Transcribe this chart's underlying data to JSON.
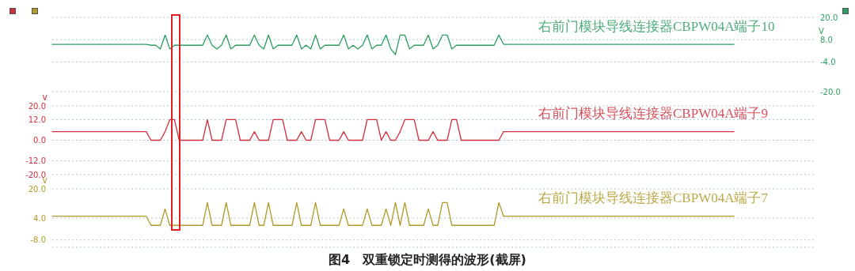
{
  "chart_data": [
    {
      "type": "line",
      "categories": [
        null,
        null,
        null,
        null,
        null,
        null,
        null,
        null,
        null,
        null,
        null,
        null,
        null,
        null,
        null,
        null,
        null,
        null,
        null,
        null,
        null,
        null,
        null,
        null,
        null,
        null,
        null,
        null,
        null,
        null,
        null,
        null,
        null,
        null,
        null,
        null,
        null,
        null,
        null,
        null,
        null,
        null,
        null,
        null,
        null,
        null,
        null,
        null,
        null,
        null,
        null,
        null,
        null,
        null,
        null,
        null,
        null,
        null,
        null,
        null,
        null,
        null,
        null,
        null,
        null,
        null,
        null,
        null,
        null,
        null,
        null,
        null,
        null,
        null,
        null,
        null,
        null,
        null,
        null,
        null,
        null,
        null,
        null,
        null,
        null,
        null,
        null,
        null,
        null,
        null,
        null,
        null,
        null,
        null,
        null,
        null,
        null,
        null,
        null,
        null,
        null,
        null,
        null,
        null,
        null,
        null,
        null,
        null,
        null,
        null,
        null,
        null,
        null,
        null,
        null,
        null,
        null,
        null,
        null,
        null,
        null,
        null,
        null,
        null,
        null,
        null,
        null,
        null,
        null,
        null,
        null,
        null,
        null,
        null,
        null,
        null,
        null,
        null,
        null,
        null,
        null,
        null,
        null,
        null,
        null,
        null,
        null,
        null,
        null,
        null,
        null,
        null,
        null,
        null,
        null,
        null,
        null,
        null,
        null,
        null,
        null,
        null,
        null
      ],
      "series": [
        {
          "name": "右前门模块导线连接器CBPW04A端子10",
          "color": "#2e9e62",
          "values": [
            5.5,
            5.5,
            5.5,
            5.5,
            5.5,
            5.5,
            5.5,
            5.5,
            5.5,
            5.5,
            5.5,
            5.5,
            5.5,
            5.5,
            5.5,
            5.5,
            5.5,
            5.5,
            5.5,
            5.5,
            5.5,
            5,
            5,
            3,
            10.5,
            3,
            5,
            5,
            5,
            5,
            5,
            5,
            5,
            10.5,
            5,
            3,
            5,
            10.5,
            3,
            5,
            5,
            5,
            5,
            10.5,
            5,
            3,
            10.5,
            3,
            5,
            5,
            5,
            5,
            10.5,
            3,
            5,
            3,
            10.5,
            3,
            5,
            5,
            5,
            5,
            10.5,
            3,
            5,
            3,
            5,
            10.5,
            3,
            5,
            5,
            10.5,
            3,
            0,
            10.5,
            10.5,
            3,
            5,
            5,
            5,
            10.5,
            3,
            5,
            10.5,
            10.5,
            3,
            5,
            5,
            5,
            5,
            5,
            5,
            5,
            5,
            5,
            10.5,
            5.5,
            5.5,
            5.5,
            5.5,
            5.5,
            5.5,
            5.5,
            5.5,
            5.5,
            5.5,
            5.5,
            5.5,
            5.5,
            5.5,
            5.5,
            5.5,
            5.5,
            5.5,
            5.5,
            5.5,
            5.5,
            5.5,
            5.5,
            5.5,
            5.5,
            5.5,
            5.5,
            5.5,
            5.5,
            5.5,
            5.5,
            5.5,
            5.5,
            5.5,
            5.5,
            5.5,
            5.5,
            5.5,
            5.5,
            5.5,
            5.5,
            5.5,
            5.5,
            5.5,
            5.5,
            5.5,
            5.5,
            5.5,
            5.5,
            5.5,
            null,
            null,
            null,
            null,
            null,
            null,
            null,
            null,
            null,
            null,
            null,
            null,
            null,
            null,
            null,
            null,
            null
          ]
        }
      ],
      "ylabel": "V",
      "ylim": [
        -20,
        20
      ],
      "yticks": [
        {
          "value": 20,
          "label": "20.0"
        },
        {
          "value": 8,
          "label": "8.0"
        },
        {
          "value": -4,
          "label": "-4.0"
        },
        {
          "value": -20,
          "label": "-20.0"
        }
      ],
      "grid": "y",
      "legend": false,
      "tick_labels": "y"
    },
    {
      "type": "line",
      "categories": [
        null,
        null,
        null,
        null,
        null,
        null,
        null,
        null,
        null,
        null,
        null,
        null,
        null,
        null,
        null,
        null,
        null,
        null,
        null,
        null,
        null,
        null,
        null,
        null,
        null,
        null,
        null,
        null,
        null,
        null,
        null,
        null,
        null,
        null,
        null,
        null,
        null,
        null,
        null,
        null,
        null,
        null,
        null,
        null,
        null,
        null,
        null,
        null,
        null,
        null,
        null,
        null,
        null,
        null,
        null,
        null,
        null,
        null,
        null,
        null,
        null,
        null,
        null,
        null,
        null,
        null,
        null,
        null,
        null,
        null,
        null,
        null,
        null,
        null,
        null,
        null,
        null,
        null,
        null,
        null,
        null,
        null,
        null,
        null,
        null,
        null,
        null,
        null,
        null,
        null,
        null,
        null,
        null,
        null,
        null,
        null,
        null,
        null,
        null,
        null,
        null,
        null,
        null,
        null,
        null,
        null,
        null,
        null,
        null,
        null,
        null,
        null,
        null,
        null,
        null,
        null,
        null,
        null,
        null,
        null,
        null,
        null,
        null,
        null,
        null,
        null,
        null,
        null,
        null,
        null,
        null,
        null,
        null,
        null,
        null,
        null,
        null,
        null,
        null,
        null,
        null,
        null,
        null,
        null,
        null,
        null,
        null,
        null,
        null,
        null,
        null,
        null,
        null,
        null,
        null,
        null,
        null,
        null,
        null,
        null,
        null,
        null,
        null
      ],
      "series": [
        {
          "name": "右前门模块导线连接器CBPW04A端子9",
          "color": "#d0303e",
          "values": [
            5,
            5,
            5,
            5,
            5,
            5,
            5,
            5,
            5,
            5,
            5,
            5,
            5,
            5,
            5,
            5,
            5,
            5,
            5,
            5,
            5,
            0,
            0,
            0,
            5,
            12,
            12,
            0,
            0,
            0,
            0,
            0,
            0,
            12,
            0,
            0,
            0,
            12,
            12,
            12,
            0,
            0,
            0,
            5,
            0,
            0,
            0,
            12,
            12,
            12,
            0,
            0,
            0,
            5,
            0,
            0,
            12,
            12,
            12,
            0,
            0,
            0,
            5,
            0,
            0,
            0,
            0,
            12,
            12,
            12,
            0,
            5,
            0,
            0,
            5,
            12,
            12,
            12,
            0,
            0,
            0,
            5,
            0,
            0,
            0,
            12,
            12,
            0,
            0,
            0,
            0,
            0,
            0,
            0,
            0,
            0,
            5,
            5,
            5,
            5,
            5,
            5,
            5,
            5,
            5,
            5,
            5,
            5,
            5,
            5,
            5,
            5,
            5,
            5,
            5,
            5,
            5,
            5,
            5,
            5,
            5,
            5,
            5,
            5,
            5,
            5,
            5,
            5,
            5,
            5,
            5,
            5,
            5,
            5,
            5,
            5,
            5,
            5,
            5,
            5,
            5,
            5,
            5,
            5,
            5,
            5,
            null,
            null,
            null,
            null,
            null,
            null,
            null,
            null,
            null,
            null,
            null,
            null,
            null,
            null,
            null,
            null,
            null
          ]
        }
      ],
      "ylabel": "V",
      "ylim": [
        -20,
        20
      ],
      "yticks": [
        {
          "value": 20,
          "label": "20.0"
        },
        {
          "value": 12,
          "label": "12.0"
        },
        {
          "value": 0,
          "label": "0.0"
        },
        {
          "value": -12,
          "label": "-12.0"
        },
        {
          "value": -20,
          "label": "-20.0"
        }
      ],
      "grid": "y",
      "legend": false,
      "tick_labels": "y"
    },
    {
      "type": "line",
      "categories": [
        null,
        null,
        null,
        null,
        null,
        null,
        null,
        null,
        null,
        null,
        null,
        null,
        null,
        null,
        null,
        null,
        null,
        null,
        null,
        null,
        null,
        null,
        null,
        null,
        null,
        null,
        null,
        null,
        null,
        null,
        null,
        null,
        null,
        null,
        null,
        null,
        null,
        null,
        null,
        null,
        null,
        null,
        null,
        null,
        null,
        null,
        null,
        null,
        null,
        null,
        null,
        null,
        null,
        null,
        null,
        null,
        null,
        null,
        null,
        null,
        null,
        null,
        null,
        null,
        null,
        null,
        null,
        null,
        null,
        null,
        null,
        null,
        null,
        null,
        null,
        null,
        null,
        null,
        null,
        null,
        null,
        null,
        null,
        null,
        null,
        null,
        null,
        null,
        null,
        null,
        null,
        null,
        null,
        null,
        null,
        null,
        null,
        null,
        null,
        null,
        null,
        null,
        null,
        null,
        null,
        null,
        null,
        null,
        null,
        null,
        null,
        null,
        null,
        null,
        null,
        null,
        null,
        null,
        null,
        null,
        null,
        null,
        null,
        null,
        null,
        null,
        null,
        null,
        null,
        null,
        null,
        null,
        null,
        null,
        null,
        null,
        null,
        null,
        null,
        null,
        null,
        null,
        null,
        null,
        null,
        null,
        null,
        null,
        null,
        null,
        null,
        null,
        null,
        null,
        null,
        null,
        null,
        null,
        null,
        null,
        null,
        null,
        null
      ],
      "series": [
        {
          "name": "右前门模块导线连接器CBPW04A端子7",
          "color": "#b09a28",
          "values": [
            5,
            5,
            5,
            5,
            5,
            5,
            5,
            5,
            5,
            5,
            5,
            5,
            5,
            5,
            5,
            5,
            5,
            5,
            5,
            5,
            5,
            0,
            0,
            0,
            9,
            0,
            0,
            0,
            0,
            0,
            0,
            0,
            0,
            12.5,
            0,
            0,
            0,
            12.5,
            0,
            0,
            0,
            0,
            0,
            12.5,
            0,
            0,
            12.5,
            0,
            0,
            0,
            0,
            0,
            12.5,
            0,
            0,
            0,
            12.5,
            0,
            0,
            0,
            0,
            0,
            9,
            0,
            0,
            0,
            0,
            9,
            0,
            0,
            0,
            9,
            0,
            12.5,
            0,
            12.5,
            0,
            0,
            0,
            0,
            9,
            0,
            0,
            12.5,
            12.5,
            0,
            0,
            0,
            0,
            0,
            0,
            0,
            0,
            0,
            0,
            12.5,
            5,
            5,
            5,
            5,
            5,
            5,
            5,
            5,
            5,
            5,
            5,
            5,
            5,
            5,
            5,
            5,
            5,
            5,
            5,
            5,
            5,
            5,
            5,
            5,
            5,
            5,
            5,
            5,
            5,
            5,
            5,
            5,
            5,
            5,
            5,
            5,
            5,
            5,
            5,
            5,
            5,
            5,
            5,
            5,
            5,
            5,
            5,
            5,
            5,
            5,
            null,
            null,
            null,
            null,
            null,
            null,
            null,
            null,
            null,
            null,
            null,
            null,
            null,
            null,
            null,
            null,
            null
          ]
        }
      ],
      "ylabel": "V",
      "ylim": [
        -12,
        20
      ],
      "yticks": [
        {
          "value": 20,
          "label": "20.0"
        },
        {
          "value": 4,
          "label": "4.0"
        },
        {
          "value": -8,
          "label": "-8.0"
        }
      ],
      "grid": "y",
      "legend": false,
      "tick_labels": "y",
      "annotations": [
        "图4　双重锁定时测得的波形(截屏)"
      ]
    }
  ]
}
